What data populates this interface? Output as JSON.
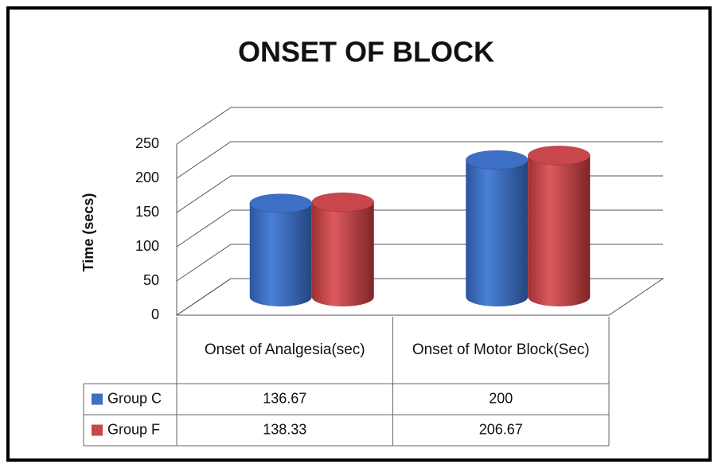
{
  "chart_data": {
    "type": "bar",
    "title": "ONSET OF BLOCK",
    "y_label": "Time (secs)",
    "categories": [
      "Onset of Analgesia(sec)",
      "Onset of Motor Block(Sec)"
    ],
    "series": [
      {
        "name": "Group C",
        "color": "#3d6fc7",
        "values": [
          136.67,
          200
        ]
      },
      {
        "name": "Group F",
        "color": "#c9464a",
        "values": [
          138.33,
          206.67
        ]
      }
    ],
    "ylim": [
      0,
      250
    ],
    "yticks": [
      0,
      50,
      100,
      150,
      200,
      250
    ],
    "grid": true
  }
}
